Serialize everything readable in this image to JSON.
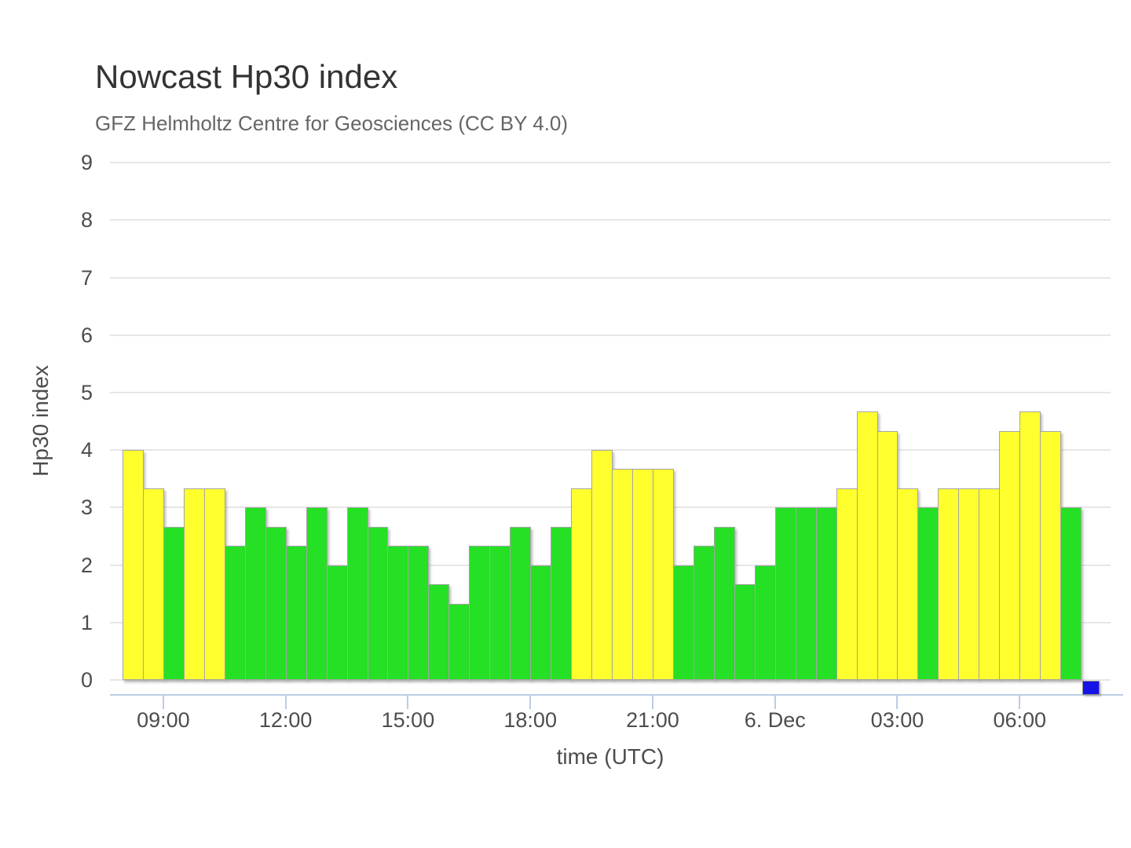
{
  "chart_data": {
    "type": "bar",
    "title": "Nowcast Hp30 index",
    "subtitle": "GFZ Helmholtz Centre for Geosciences (CC BY 4.0)",
    "xlabel": "time (UTC)",
    "ylabel": "Hp30 index",
    "ylim": [
      0,
      9
    ],
    "grid": "horizontal",
    "legend_position": "none",
    "bar_interval": "30 min",
    "yticks": [
      0,
      1,
      2,
      3,
      4,
      5,
      6,
      7,
      8,
      9
    ],
    "xticks": [
      {
        "label": "09:00",
        "slot": 2
      },
      {
        "label": "12:00",
        "slot": 8
      },
      {
        "label": "15:00",
        "slot": 14
      },
      {
        "label": "18:00",
        "slot": 20
      },
      {
        "label": "21:00",
        "slot": 26
      },
      {
        "label": "6. Dec",
        "slot": 32
      },
      {
        "label": "03:00",
        "slot": 38
      },
      {
        "label": "06:00",
        "slot": 44
      }
    ],
    "values": [
      4,
      3.33,
      2.67,
      3.33,
      3.33,
      2.33,
      3,
      2.67,
      2.33,
      3,
      2,
      3,
      2.67,
      2.33,
      2.33,
      1.67,
      1.33,
      2.33,
      2.33,
      2.67,
      2,
      2.67,
      3.33,
      4,
      3.67,
      3.67,
      3.67,
      2,
      2.33,
      2.67,
      1.67,
      2,
      3,
      3,
      3,
      3.33,
      4.67,
      4.33,
      3.33,
      3,
      3.33,
      3.33,
      3.33,
      4.33,
      4.67,
      4.33,
      3
    ],
    "colors": [
      "y",
      "y",
      "g",
      "y",
      "y",
      "g",
      "g",
      "g",
      "g",
      "g",
      "g",
      "g",
      "g",
      "g",
      "g",
      "g",
      "g",
      "g",
      "g",
      "g",
      "g",
      "g",
      "y",
      "y",
      "y",
      "y",
      "y",
      "g",
      "g",
      "g",
      "g",
      "g",
      "g",
      "g",
      "g",
      "y",
      "y",
      "y",
      "y",
      "g",
      "y",
      "y",
      "y",
      "y",
      "y",
      "y",
      "g"
    ],
    "palette": {
      "g": "#25e025",
      "y": "#ffff2e",
      "marker_blue": "#1414e6",
      "bar_border": "#a6a6a6",
      "gridline": "#e6e6e6",
      "axis_line": "#bccde6",
      "title_color": "#333333",
      "subtitle_color": "#666666",
      "tick_label_color": "#4d4d4d"
    },
    "current_interval_marker": {
      "color": "#1414e6",
      "value_slot": 47
    }
  }
}
